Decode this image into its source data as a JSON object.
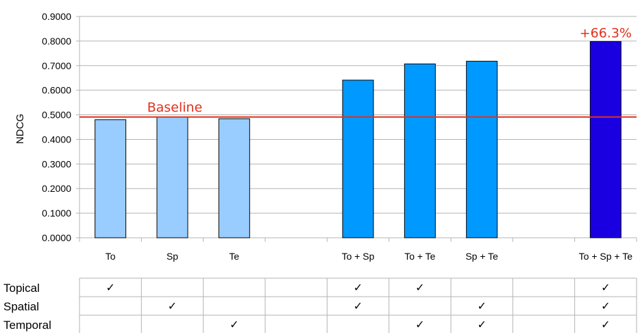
{
  "chart_data": {
    "type": "bar",
    "categories": [
      "To",
      "Sp",
      "Te",
      "",
      "To + Sp",
      "To + Te",
      "Sp + Te",
      "",
      "To + Sp + Te"
    ],
    "values": [
      0.48,
      0.491,
      0.484,
      null,
      0.641,
      0.707,
      0.718,
      null,
      0.798
    ],
    "bar_colors": [
      "#99ccff",
      "#99ccff",
      "#99ccff",
      null,
      "#0099ff",
      "#0099ff",
      "#0099ff",
      null,
      "#1a00e0"
    ],
    "ylabel": "NDCG",
    "xlabel": "",
    "ylim": [
      0,
      0.9
    ],
    "yticks": [
      "0.0000",
      "0.1000",
      "0.2000",
      "0.3000",
      "0.4000",
      "0.5000",
      "0.6000",
      "0.7000",
      "0.8000",
      "0.9000"
    ],
    "grid": true,
    "baseline": {
      "value": 0.491,
      "label": "Baseline",
      "color": "#e0301e"
    },
    "annotations": [
      {
        "category_index": 8,
        "text": "+66.3%",
        "color": "#e0301e"
      }
    ],
    "feature_table": {
      "check_mark": "✓",
      "rows": [
        {
          "label": "Topical",
          "checks": [
            true,
            false,
            false,
            false,
            true,
            true,
            false,
            false,
            true
          ]
        },
        {
          "label": "Spatial",
          "checks": [
            false,
            true,
            false,
            false,
            true,
            false,
            true,
            false,
            true
          ]
        },
        {
          "label": "Temporal",
          "checks": [
            false,
            false,
            true,
            false,
            false,
            true,
            true,
            false,
            true
          ]
        }
      ]
    }
  }
}
